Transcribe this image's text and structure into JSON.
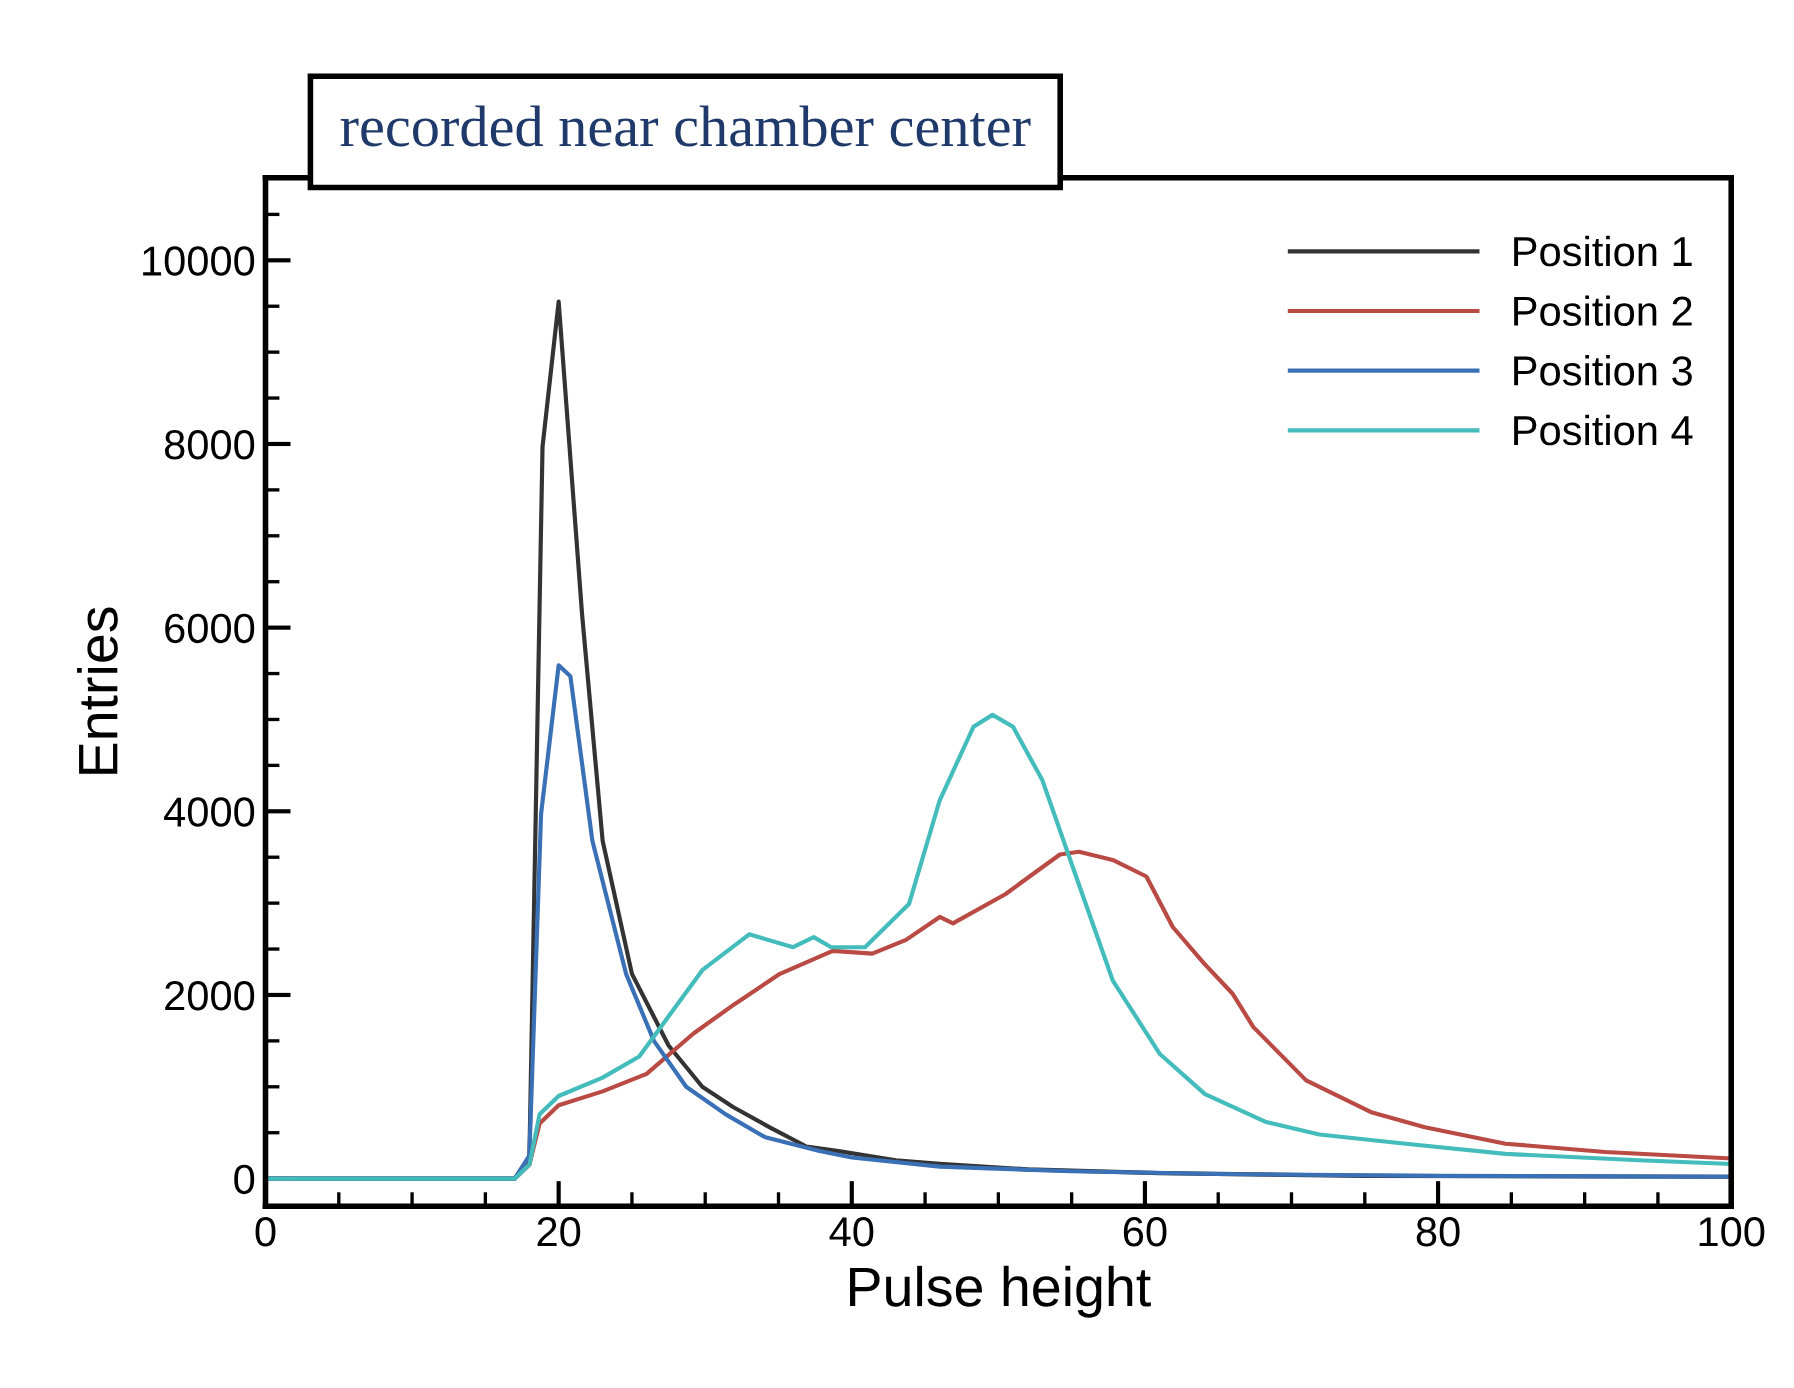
{
  "chart_data": {
    "type": "line",
    "title": "recorded near chamber center",
    "xlabel": "Pulse height",
    "ylabel": "Entries",
    "xlim": [
      0,
      100
    ],
    "ylim": [
      -300,
      10900
    ],
    "xticks": [
      0,
      {
        "value": 5,
        "label": null
      },
      {
        "value": 10,
        "label": null
      },
      {
        "value": 15,
        "label": null
      },
      20,
      {
        "value": 25,
        "label": null
      },
      {
        "value": 30,
        "label": null
      },
      {
        "value": 35,
        "label": null
      },
      40,
      {
        "value": 45,
        "label": null
      },
      {
        "value": 50,
        "label": null
      },
      {
        "value": 55,
        "label": null
      },
      60,
      {
        "value": 65,
        "label": null
      },
      {
        "value": 70,
        "label": null
      },
      {
        "value": 75,
        "label": null
      },
      80,
      {
        "value": 85,
        "label": null
      },
      {
        "value": 90,
        "label": null
      },
      {
        "value": 95,
        "label": null
      },
      100
    ],
    "yticks": [
      0,
      {
        "value": 500,
        "label": null
      },
      {
        "value": 1000,
        "label": null
      },
      {
        "value": 1500,
        "label": null
      },
      2000,
      {
        "value": 2500,
        "label": null
      },
      {
        "value": 3000,
        "label": null
      },
      {
        "value": 3500,
        "label": null
      },
      4000,
      {
        "value": 4500,
        "label": null
      },
      {
        "value": 5000,
        "label": null
      },
      {
        "value": 5500,
        "label": null
      },
      6000,
      {
        "value": 6500,
        "label": null
      },
      {
        "value": 7000,
        "label": null
      },
      {
        "value": 7500,
        "label": null
      },
      8000,
      {
        "value": 8500,
        "label": null
      },
      {
        "value": 9000,
        "label": null
      },
      {
        "value": 9500,
        "label": null
      },
      10000,
      {
        "value": 10500,
        "label": null
      }
    ],
    "grid": false,
    "legend": "top right",
    "marker": "none",
    "line_style": "solid",
    "series": [
      {
        "name": "Position 1",
        "color": "#333333",
        "x": [
          0,
          17,
          18,
          18.9,
          20,
          21.6,
          23,
          25,
          27.5,
          29.8,
          31.9,
          34.5,
          36.9,
          39.1,
          43,
          46,
          52,
          61,
          75,
          100
        ],
        "values": [
          0,
          0,
          200,
          7970,
          9550,
          6140,
          3680,
          2230,
          1450,
          1000,
          780,
          550,
          350,
          300,
          200,
          160,
          100,
          60,
          30,
          20
        ]
      },
      {
        "name": "Position 2",
        "color": "#b94a44",
        "x": [
          0,
          17,
          18,
          18.7,
          20,
          23,
          26,
          29.2,
          32,
          35.1,
          38.7,
          41.4,
          43.7,
          46,
          46.9,
          50.5,
          54.2,
          55.5,
          57.8,
          60.1,
          61.9,
          64,
          66,
          67.4,
          71,
          75.5,
          79.1,
          84.6,
          91.4,
          99.9
        ],
        "values": [
          0,
          0,
          150,
          600,
          800,
          950,
          1140,
          1580,
          1900,
          2230,
          2480,
          2450,
          2600,
          2850,
          2780,
          3100,
          3530,
          3560,
          3470,
          3290,
          2740,
          2350,
          2010,
          1650,
          1070,
          720,
          560,
          380,
          290,
          220
        ]
      },
      {
        "name": "Position 3",
        "color": "#3a70b5",
        "x": [
          0,
          17,
          18,
          18.8,
          20,
          20.8,
          22.3,
          24.6,
          26.5,
          28.7,
          31.4,
          34.1,
          37.8,
          40,
          46,
          55,
          65,
          80,
          100
        ],
        "values": [
          0,
          0,
          250,
          3970,
          5590,
          5470,
          3680,
          2230,
          1500,
          1000,
          700,
          450,
          300,
          230,
          130,
          80,
          50,
          30,
          20
        ]
      },
      {
        "name": "Position 4",
        "color": "#45bcbc",
        "x": [
          0,
          17,
          18,
          18.7,
          20,
          23,
          25.5,
          29.8,
          33,
          36,
          37.4,
          38.6,
          40.9,
          43.9,
          46,
          48.3,
          49.6,
          51,
          53,
          55.5,
          57.8,
          61,
          64.1,
          68.2,
          71.9,
          77.8,
          84.6,
          93.7,
          99.9
        ],
        "values": [
          0,
          0,
          150,
          700,
          900,
          1100,
          1330,
          2270,
          2660,
          2520,
          2630,
          2520,
          2520,
          2990,
          4120,
          4920,
          5050,
          4920,
          4340,
          3200,
          2160,
          1360,
          920,
          620,
          480,
          380,
          270,
          200,
          160
        ]
      }
    ]
  }
}
